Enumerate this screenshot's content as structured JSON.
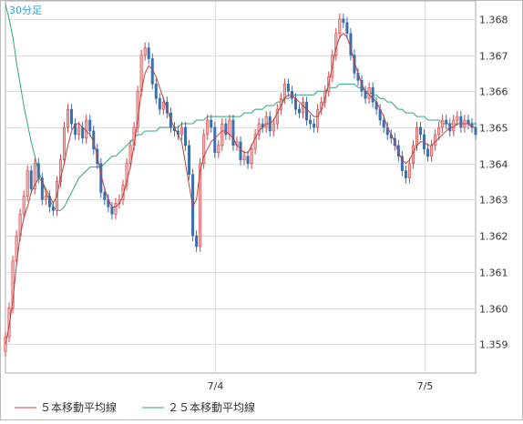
{
  "chart_data": {
    "type": "candlestick",
    "timeframe_label": "30分足",
    "ylim": [
      1.3582,
      1.3685
    ],
    "y_ticks": [
      1.359,
      1.36,
      1.361,
      1.362,
      1.363,
      1.364,
      1.365,
      1.366,
      1.367,
      1.368
    ],
    "y_tick_labels": [
      "1.359",
      "1.360",
      "1.361",
      "1.362",
      "1.363",
      "1.364",
      "1.365",
      "1.366",
      "1.367",
      "1.368"
    ],
    "grid": true,
    "x_index_range": [
      0,
      128
    ],
    "x_date_markers": [
      {
        "label": "7/4",
        "index": 57
      },
      {
        "label": "7/5",
        "index": 114
      }
    ],
    "colors": {
      "up_candle": "#f5b0b0",
      "up_candle_edge": "#cc4444",
      "down_candle": "#3a6fb0",
      "ma5": "#c04040",
      "ma25": "#2fa37a",
      "grid": "#dddddd",
      "axis_text": "#333333",
      "timeframe_text": "#3aa0d8"
    },
    "legend": [
      {
        "name": "５本移動平均線",
        "color": "#c04040"
      },
      {
        "name": "２５本移動平均線",
        "color": "#2fa37a"
      }
    ],
    "candles_close_estimate": [
      1.3592,
      1.36,
      1.3613,
      1.362,
      1.3626,
      1.3631,
      1.3638,
      1.3633,
      1.364,
      1.3636,
      1.363,
      1.3631,
      1.3628,
      1.3627,
      1.3635,
      1.3641,
      1.365,
      1.3655,
      1.3651,
      1.3648,
      1.365,
      1.3647,
      1.3652,
      1.3649,
      1.3644,
      1.364,
      1.3632,
      1.363,
      1.3628,
      1.3626,
      1.3629,
      1.363,
      1.3634,
      1.364,
      1.3645,
      1.365,
      1.366,
      1.367,
      1.3672,
      1.3669,
      1.3662,
      1.3658,
      1.3655,
      1.3657,
      1.3654,
      1.365,
      1.3649,
      1.3648,
      1.365,
      1.3645,
      1.3637,
      1.362,
      1.3617,
      1.364,
      1.3648,
      1.3652,
      1.365,
      1.3643,
      1.3645,
      1.3651,
      1.3648,
      1.3652,
      1.3645,
      1.3646,
      1.3641,
      1.3642,
      1.364,
      1.3644,
      1.3648,
      1.3651,
      1.365,
      1.3653,
      1.3649,
      1.3651,
      1.3655,
      1.3658,
      1.3662,
      1.366,
      1.3658,
      1.3655,
      1.3654,
      1.3657,
      1.3652,
      1.3651,
      1.365,
      1.3655,
      1.3657,
      1.366,
      1.3664,
      1.367,
      1.3676,
      1.368,
      1.3679,
      1.3676,
      1.367,
      1.3665,
      1.3663,
      1.366,
      1.3658,
      1.3661,
      1.3657,
      1.3655,
      1.3652,
      1.365,
      1.3648,
      1.3647,
      1.3645,
      1.3642,
      1.3638,
      1.3636,
      1.364,
      1.3645,
      1.365,
      1.3648,
      1.3644,
      1.3642,
      1.3645,
      1.3648,
      1.365,
      1.3652,
      1.3651,
      1.3649,
      1.3652,
      1.3653,
      1.365,
      1.3652,
      1.3651,
      1.365,
      1.3648
    ],
    "ma5": [
      1.359,
      1.3595,
      1.3602,
      1.3612,
      1.362,
      1.3625,
      1.3628,
      1.3632,
      1.3634,
      1.3636,
      1.3635,
      1.3633,
      1.3631,
      1.3629,
      1.3631,
      1.3636,
      1.364,
      1.3645,
      1.3649,
      1.3651,
      1.3651,
      1.365,
      1.3649,
      1.3648,
      1.3646,
      1.3642,
      1.3637,
      1.3633,
      1.363,
      1.3628,
      1.3628,
      1.3629,
      1.3631,
      1.3635,
      1.3639,
      1.3645,
      1.3652,
      1.366,
      1.3665,
      1.3667,
      1.3666,
      1.3664,
      1.3661,
      1.3658,
      1.3655,
      1.3652,
      1.365,
      1.3648,
      1.3646,
      1.364,
      1.3634,
      1.3628,
      1.363,
      1.3638,
      1.3642,
      1.3644,
      1.3646,
      1.3647,
      1.3648,
      1.3649,
      1.3649,
      1.3648,
      1.3647,
      1.3645,
      1.3644,
      1.3643,
      1.3643,
      1.3645,
      1.3647,
      1.3649,
      1.365,
      1.3651,
      1.3651,
      1.3652,
      1.3654,
      1.3656,
      1.3658,
      1.3659,
      1.3659,
      1.3658,
      1.3657,
      1.3656,
      1.3655,
      1.3654,
      1.3653,
      1.3653,
      1.3655,
      1.3658,
      1.3662,
      1.3667,
      1.3672,
      1.3675,
      1.3676,
      1.3675,
      1.3672,
      1.3668,
      1.3665,
      1.3662,
      1.366,
      1.3659,
      1.3658,
      1.3657,
      1.3655,
      1.3653,
      1.365,
      1.3648,
      1.3646,
      1.3643,
      1.3641,
      1.364,
      1.3641,
      1.3643,
      1.3645,
      1.3646,
      1.3646,
      1.3645,
      1.3645,
      1.3646,
      1.3647,
      1.3648,
      1.3649,
      1.365,
      1.365,
      1.3651,
      1.3651,
      1.3651,
      1.3651,
      1.365,
      1.365
    ],
    "ma25": [
      1.3684,
      1.368,
      1.3675,
      1.3668,
      1.3662,
      1.3656,
      1.3651,
      1.3646,
      1.3642,
      1.3638,
      1.3635,
      1.3632,
      1.363,
      1.3628,
      1.3627,
      1.3627,
      1.3628,
      1.363,
      1.3632,
      1.3634,
      1.3636,
      1.3637,
      1.3638,
      1.3639,
      1.3639,
      1.3639,
      1.3639,
      1.364,
      1.3641,
      1.3642,
      1.3642,
      1.3643,
      1.3644,
      1.3645,
      1.3646,
      1.3647,
      1.3648,
      1.3648,
      1.3649,
      1.3649,
      1.3649,
      1.3649,
      1.365,
      1.365,
      1.365,
      1.365,
      1.365,
      1.365,
      1.3651,
      1.3651,
      1.3651,
      1.3651,
      1.3652,
      1.3652,
      1.3652,
      1.3653,
      1.3653,
      1.3653,
      1.3653,
      1.3653,
      1.3653,
      1.3653,
      1.3653,
      1.3653,
      1.3653,
      1.3654,
      1.3654,
      1.3654,
      1.3655,
      1.3655,
      1.3655,
      1.3656,
      1.3656,
      1.3656,
      1.3657,
      1.3657,
      1.3658,
      1.3658,
      1.3659,
      1.3659,
      1.3659,
      1.3659,
      1.3659,
      1.3659,
      1.3659,
      1.366,
      1.366,
      1.366,
      1.3661,
      1.3661,
      1.3661,
      1.3662,
      1.3662,
      1.3662,
      1.3662,
      1.3662,
      1.3661,
      1.3661,
      1.366,
      1.366,
      1.3659,
      1.3659,
      1.3658,
      1.3658,
      1.3657,
      1.3657,
      1.3656,
      1.3655,
      1.3655,
      1.3654,
      1.3654,
      1.3654,
      1.3653,
      1.3653,
      1.3653,
      1.3652,
      1.3652,
      1.3652,
      1.3652,
      1.3651,
      1.3651,
      1.3651,
      1.3651,
      1.3651,
      1.3651,
      1.3651,
      1.3651,
      1.3651,
      1.3651
    ]
  }
}
